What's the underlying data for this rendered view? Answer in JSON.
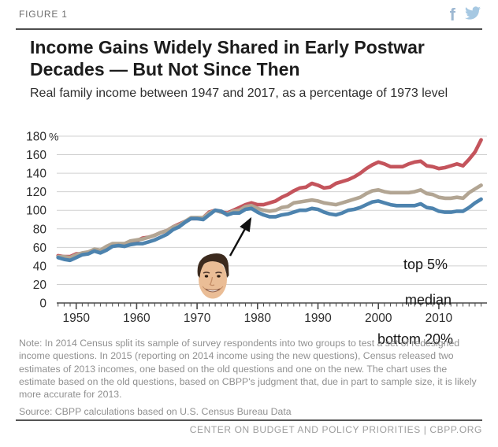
{
  "figure_label": "FIGURE 1",
  "header": {
    "facebook_icon": "facebook-f",
    "twitter_icon": "twitter-bird",
    "facebook_color": "#9db8d2",
    "twitter_color": "#a6c8e2"
  },
  "title": "Income Gains Widely Shared in Early Postwar Decades — But Not Since Then",
  "subtitle": "Real family income between 1947 and 2017, as a percentage of 1973 level",
  "chart_data": {
    "type": "line",
    "title": "Real family income between 1947 and 2017, as a percentage of 1973 level",
    "xlabel": "",
    "ylabel": "",
    "y_unit": "%",
    "ylim": [
      0,
      180
    ],
    "xlim": [
      1947,
      2017
    ],
    "grid": true,
    "grid_color": "#d0d0d0",
    "axis_color": "#4a4a4a",
    "tick_label_color": "#2e2e2e",
    "yticks": [
      0,
      20,
      40,
      60,
      80,
      100,
      120,
      140,
      160,
      180
    ],
    "xticks": [
      1950,
      1960,
      1970,
      1980,
      1990,
      2000,
      2010
    ],
    "x": [
      1947,
      1948,
      1949,
      1950,
      1951,
      1952,
      1953,
      1954,
      1955,
      1956,
      1957,
      1958,
      1959,
      1960,
      1961,
      1962,
      1963,
      1964,
      1965,
      1966,
      1967,
      1968,
      1969,
      1970,
      1971,
      1972,
      1973,
      1974,
      1975,
      1976,
      1977,
      1978,
      1979,
      1980,
      1981,
      1982,
      1983,
      1984,
      1985,
      1986,
      1987,
      1988,
      1989,
      1990,
      1991,
      1992,
      1993,
      1994,
      1995,
      1996,
      1997,
      1998,
      1999,
      2000,
      2001,
      2002,
      2003,
      2004,
      2005,
      2006,
      2007,
      2008,
      2009,
      2010,
      2011,
      2012,
      2013,
      2014,
      2015,
      2016,
      2017
    ],
    "series": [
      {
        "name": "top 5%",
        "color": "#c4545c",
        "values": [
          51,
          50,
          50,
          53,
          53,
          55,
          57,
          57,
          59,
          62,
          62,
          62,
          66,
          67,
          70,
          71,
          73,
          76,
          78,
          82,
          85,
          88,
          91,
          91,
          92,
          98,
          100,
          98,
          97,
          100,
          103,
          106,
          108,
          106,
          106,
          108,
          110,
          114,
          117,
          121,
          124,
          125,
          129,
          127,
          124,
          125,
          129,
          131,
          133,
          136,
          140,
          145,
          149,
          152,
          150,
          147,
          147,
          147,
          150,
          152,
          153,
          148,
          147,
          145,
          146,
          148,
          150,
          148,
          155,
          163,
          176
        ]
      },
      {
        "name": "median",
        "color": "#b2a593",
        "values": [
          50,
          50,
          49,
          52,
          54,
          55,
          58,
          57,
          61,
          64,
          64,
          64,
          67,
          68,
          69,
          71,
          73,
          76,
          78,
          82,
          84,
          88,
          92,
          92,
          92,
          97,
          100,
          98,
          96,
          99,
          100,
          104,
          105,
          102,
          100,
          99,
          100,
          103,
          104,
          108,
          109,
          110,
          111,
          110,
          108,
          107,
          106,
          108,
          110,
          112,
          114,
          118,
          121,
          122,
          120,
          119,
          119,
          119,
          119,
          120,
          122,
          118,
          117,
          114,
          113,
          113,
          114,
          113,
          119,
          123,
          127
        ]
      },
      {
        "name": "bottom 20%",
        "color": "#4d83ae",
        "values": [
          49,
          47,
          46,
          49,
          52,
          53,
          56,
          54,
          57,
          61,
          62,
          61,
          63,
          64,
          64,
          66,
          68,
          71,
          74,
          79,
          82,
          87,
          91,
          91,
          90,
          95,
          100,
          99,
          95,
          97,
          97,
          101,
          102,
          98,
          95,
          93,
          93,
          95,
          96,
          98,
          100,
          100,
          102,
          101,
          98,
          96,
          95,
          97,
          100,
          101,
          103,
          106,
          109,
          110,
          108,
          106,
          105,
          105,
          105,
          105,
          107,
          103,
          102,
          99,
          98,
          98,
          99,
          99,
          103,
          108,
          112
        ]
      }
    ],
    "annotations": {
      "reagan_image": "photo cutout of Ronald Reagan's head",
      "arrow_points_to_year": 1980
    }
  },
  "note": "Note: In 2014 Census split its sample of survey respondents into two groups to test a set of redesigned income questions.  In 2015 (reporting on 2014 income using the new questions), Census released two estimates of 2013 incomes, one based on the old questions and one on the new.  The chart uses the estimate based on the old questions, based on CBPP's judgment that, due in part to sample size, it is likely more accurate for 2013.",
  "source": "Source: CBPP calculations based on U.S. Census Bureau Data",
  "footer": "CENTER ON BUDGET AND POLICY PRIORITIES | CBPP.ORG"
}
